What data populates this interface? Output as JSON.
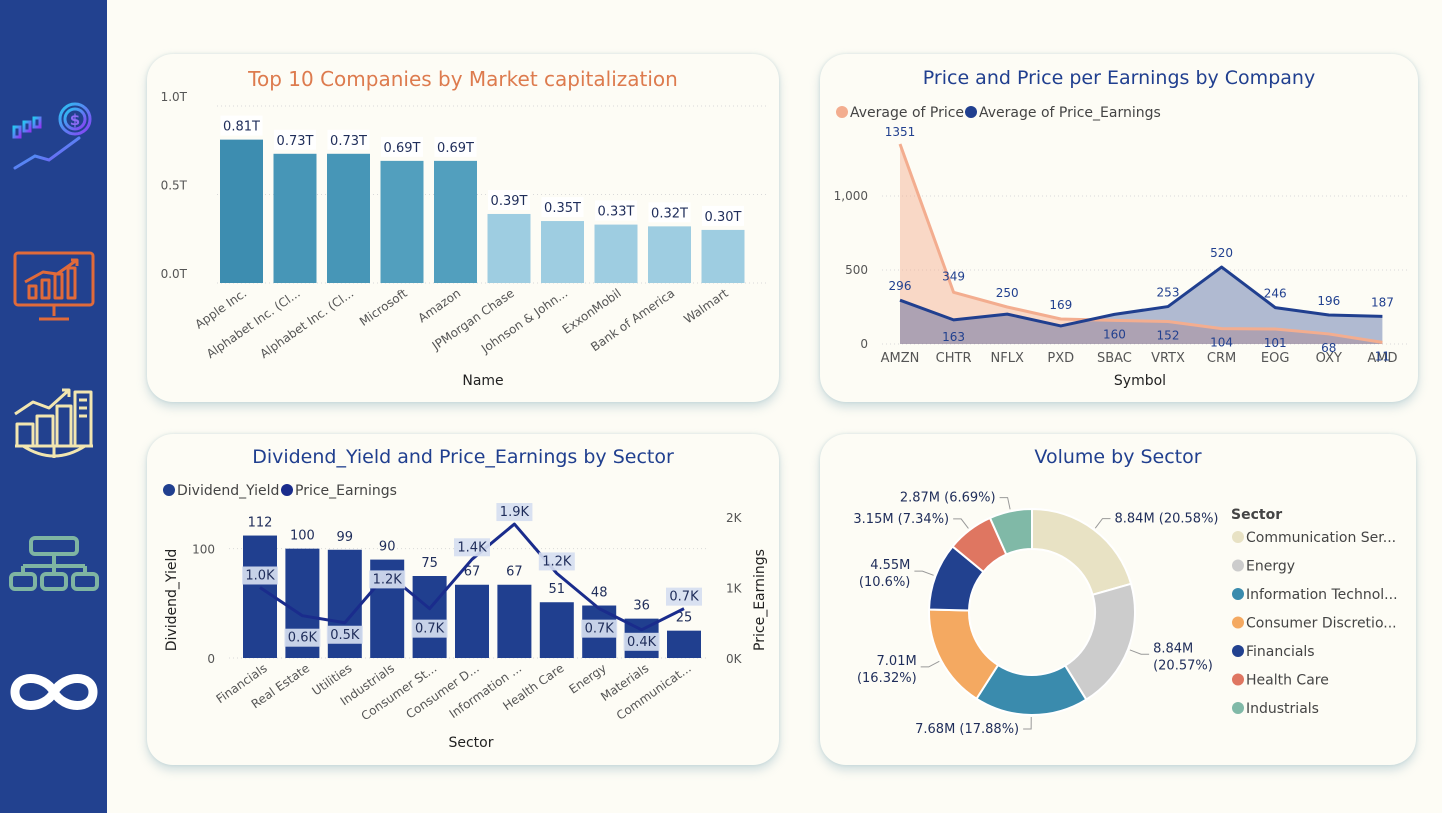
{
  "colors": {
    "sidebar": "#22418f",
    "navy": "#203f8f",
    "orange_title": "#dd7b4e",
    "price": "#f3ad8f",
    "pe": "#203f8f"
  },
  "nav_icons": [
    "stock-chart-dollar-icon",
    "presentation-monitor-icon",
    "city-growth-globe-icon",
    "org-chart-icon",
    "infinity-icon"
  ],
  "chart_data": [
    {
      "type": "bar",
      "title": "Top 10 Companies by Market capitalization",
      "xlabel": "Name",
      "ylabel": "",
      "yticks": [
        "0.0T",
        "0.5T",
        "1.0T"
      ],
      "ylim": [
        0,
        1.0
      ],
      "categories": [
        "Apple Inc.",
        "Alphabet Inc. (Cl...",
        "Alphabet Inc. (Cl...",
        "Microsoft",
        "Amazon",
        "JPMorgan Chase",
        "Johnson & John...",
        "ExxonMobil",
        "Bank of America",
        "Walmart"
      ],
      "values": [
        0.81,
        0.73,
        0.73,
        0.69,
        0.69,
        0.39,
        0.35,
        0.33,
        0.32,
        0.3
      ],
      "labels": [
        "0.81T",
        "0.73T",
        "0.73T",
        "0.69T",
        "0.69T",
        "0.39T",
        "0.35T",
        "0.33T",
        "0.32T",
        "0.30T"
      ],
      "colors": [
        "#3d8db0",
        "#4796b7",
        "#4796b7",
        "#529fbe",
        "#529fbe",
        "#9ecde1",
        "#9ecde1",
        "#9ecde1",
        "#9ecde1",
        "#9ecde1"
      ]
    },
    {
      "type": "area",
      "title": "Price and Price per Earnings by Company",
      "xlabel": "Symbol",
      "ylabel": "",
      "yticks": [
        "0",
        "500",
        "1,000"
      ],
      "ylim": [
        0,
        1500
      ],
      "legend_position": "top-left",
      "categories": [
        "AMZN",
        "CHTR",
        "NFLX",
        "PXD",
        "SBAC",
        "VRTX",
        "CRM",
        "EOG",
        "OXY",
        "AMD"
      ],
      "series": [
        {
          "name": "Average of Price",
          "values": [
            1351,
            349,
            250,
            169,
            160,
            152,
            104,
            101,
            68,
            11
          ],
          "labels": [
            "1351",
            "349",
            "250",
            "169",
            "160",
            "152",
            "104",
            "101",
            "68",
            "11"
          ]
        },
        {
          "name": "Average of Price_Earnings",
          "values": [
            296,
            163,
            202,
            122,
            200,
            253,
            520,
            246,
            196,
            187
          ],
          "labels": [
            "296",
            "163",
            "",
            "",
            "",
            "253",
            "520",
            "246",
            "196",
            "187"
          ]
        }
      ]
    },
    {
      "type": "bar",
      "title": "Dividend_Yield and Price_Earnings by Sector",
      "xlabel": "Sector",
      "ylabel": "Dividend_Yield",
      "y2label": "Price_Earnings",
      "yticks": [
        "0",
        "100"
      ],
      "y2ticks": [
        "0K",
        "1K",
        "2K"
      ],
      "ylim": [
        0,
        150
      ],
      "y2lim": [
        0,
        2000
      ],
      "legend_position": "top-left",
      "categories": [
        "Financials",
        "Real Estate",
        "Utilities",
        "Industrials",
        "Consumer St...",
        "Consumer D...",
        "Information ...",
        "Health Care",
        "Energy",
        "Materials",
        "Communicat..."
      ],
      "series": [
        {
          "name": "Dividend_Yield",
          "values": [
            112,
            100,
            99,
            90,
            75,
            67,
            67,
            51,
            48,
            36,
            25
          ],
          "labels": [
            "112",
            "100",
            "99",
            "90",
            "75",
            "67",
            "67",
            "51",
            "48",
            "36",
            "25"
          ]
        },
        {
          "name": "Price_Earnings",
          "values": [
            1000,
            600,
            500,
            1200,
            700,
            1400,
            1900,
            1200,
            700,
            400,
            700
          ],
          "labels": [
            "1.0K",
            "0.6K",
            "0.5K",
            "1.2K",
            "0.7K",
            "1.4K",
            "1.9K",
            "1.2K",
            "0.7K",
            "0.4K",
            "0.7K"
          ]
        }
      ]
    },
    {
      "type": "pie",
      "title": "Volume by Sector",
      "legend_title": "Sector",
      "legend_position": "right",
      "categories": [
        "Communication Ser...",
        "Energy",
        "Information Technol...",
        "Consumer Discretio...",
        "Financials",
        "Health Care",
        "Industrials"
      ],
      "values": [
        8.84,
        8.84,
        7.68,
        7.01,
        4.55,
        3.15,
        2.87
      ],
      "labels": [
        "8.84M (20.58%)",
        "8.84M (20.57%)",
        "7.68M (17.88%)",
        "7.01M (16.32%)",
        "4.55M (10.6%)",
        "3.15M (7.34%)",
        "2.87M (6.69%)"
      ],
      "colors": [
        "#e8e2c4",
        "#cccccc",
        "#3a8bad",
        "#f4a961",
        "#22418f",
        "#df7661",
        "#80b9a7"
      ]
    }
  ]
}
